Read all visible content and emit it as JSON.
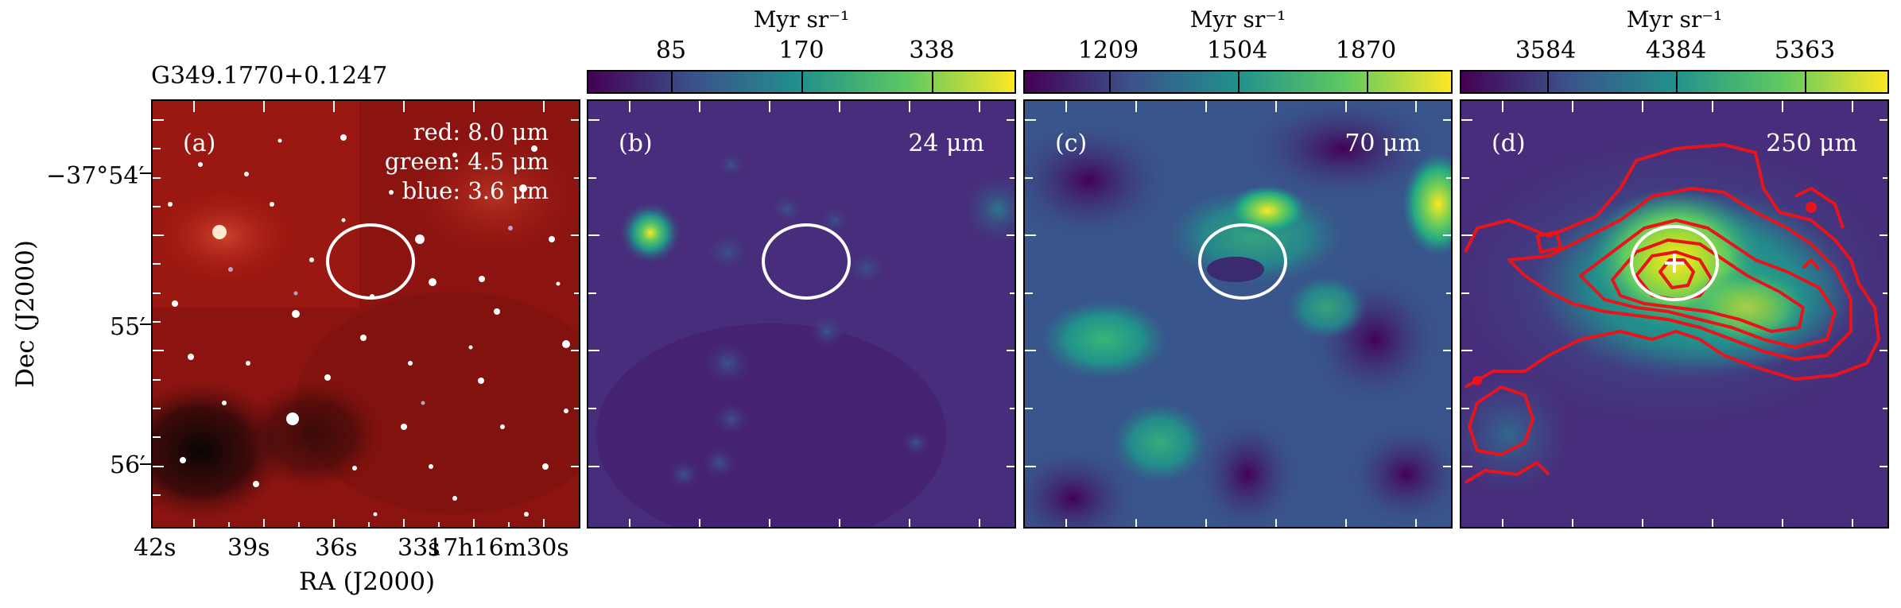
{
  "source_name": "G349.1770+0.1247",
  "colorbar_unit": "Myr sr⁻¹",
  "panels": [
    {
      "label": "(a)",
      "rgb_legend": [
        "red: 8.0 μm",
        "green: 4.5 μm",
        "blue: 3.6 μm"
      ]
    },
    {
      "label": "(b)",
      "wavelength": "24 μm",
      "colorbar_ticks": [
        "85",
        "170",
        "338"
      ]
    },
    {
      "label": "(c)",
      "wavelength": "70 μm",
      "colorbar_ticks": [
        "1209",
        "1504",
        "1870"
      ]
    },
    {
      "label": "(d)",
      "wavelength": "250 μm",
      "colorbar_ticks": [
        "3584",
        "4384",
        "5363"
      ]
    }
  ],
  "axes": {
    "xlabel": "RA (J2000)",
    "ylabel": "Dec (J2000)",
    "xticks": [
      "42s",
      "39s",
      "36s",
      "33s",
      "17h16m30s"
    ],
    "yticks": [
      "−37°54′",
      "55′",
      "56′"
    ]
  },
  "colors": {
    "viridis_low": "#440154",
    "viridis_mid": "#21918c",
    "viridis_high": "#fde725",
    "contour": "#e8141c",
    "ellipse": "#ffffff"
  }
}
